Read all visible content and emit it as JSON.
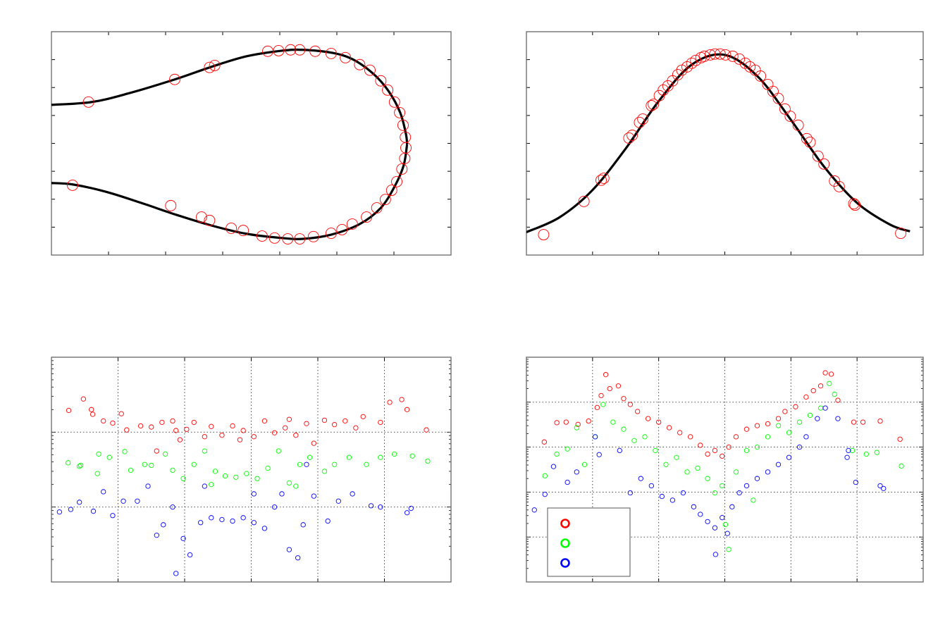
{
  "chart_data": [
    {
      "type": "line",
      "panel": "top-left",
      "xlim": [
        0,
        7
      ],
      "ylim": [
        0,
        8
      ],
      "xticks": [
        0,
        1,
        2,
        3,
        4,
        5,
        6,
        7
      ],
      "yticks": [
        0,
        1,
        2,
        3,
        4,
        5,
        6,
        7,
        8
      ],
      "grid": false,
      "marker_color": "#ff0000",
      "line_color": "#000000",
      "curves": [
        {
          "x": [
            0,
            0.7,
            1.33,
            2.16,
            2.8,
            3.42,
            4.04,
            4.41,
            4.9,
            5.27,
            5.64,
            5.91,
            6.11,
            6.21,
            6.23
          ],
          "y": [
            5.38,
            5.48,
            5.78,
            6.29,
            6.74,
            7.12,
            7.32,
            7.35,
            7.25,
            7.02,
            6.49,
            5.86,
            5.1,
            4.34,
            3.96
          ]
        },
        {
          "x": [
            0,
            0.37,
            0.95,
            1.57,
            2.19,
            2.8,
            3.42,
            4.04,
            4.41,
            4.9,
            5.4,
            5.77,
            6.01,
            6.17,
            6.23
          ],
          "y": [
            2.58,
            2.53,
            2.27,
            1.87,
            1.44,
            1.06,
            0.76,
            0.61,
            0.58,
            0.73,
            1.11,
            1.69,
            2.45,
            3.21,
            3.96
          ]
        }
      ],
      "points": {
        "x": [
          0.65,
          2.16,
          2.77,
          2.86,
          3.79,
          3.98,
          4.19,
          4.35,
          4.62,
          4.9,
          5.15,
          5.4,
          5.58,
          5.77,
          5.89,
          6.01,
          6.1,
          6.16,
          6.2,
          6.21,
          6.19,
          6.14,
          6.05,
          5.96,
          5.85,
          5.7,
          5.52,
          5.27,
          5.09,
          4.9,
          4.59,
          4.35,
          4.14,
          3.91,
          3.69,
          3.36,
          3.15,
          2.77,
          2.63,
          2.09,
          0.37
        ],
        "y": [
          5.48,
          6.29,
          6.72,
          6.79,
          7.3,
          7.32,
          7.35,
          7.35,
          7.3,
          7.22,
          7.07,
          6.82,
          6.62,
          6.24,
          5.91,
          5.48,
          5.1,
          4.65,
          4.22,
          3.84,
          3.46,
          3.08,
          2.63,
          2.32,
          1.99,
          1.69,
          1.36,
          1.11,
          0.91,
          0.78,
          0.66,
          0.58,
          0.58,
          0.61,
          0.68,
          0.88,
          0.96,
          1.24,
          1.36,
          1.77,
          2.5
        ]
      }
    },
    {
      "type": "line",
      "panel": "top-right",
      "xlim": [
        0,
        6
      ],
      "ylim": [
        0,
        8
      ],
      "xticks": [
        0,
        1,
        2,
        3,
        4,
        5,
        6
      ],
      "yticks": [
        0,
        1,
        2,
        3,
        4,
        5,
        6,
        7,
        8
      ],
      "grid": false,
      "marker_color": "#ff0000",
      "line_color": "#000000",
      "curves": [
        {
          "x": [
            0,
            0.5,
            1,
            1.5,
            2,
            2.5,
            3,
            3.5,
            4,
            4.5,
            5,
            5.5,
            5.8
          ],
          "y": [
            0.82,
            1.35,
            2.33,
            3.81,
            5.51,
            6.82,
            7.17,
            6.39,
            4.84,
            3.17,
            1.87,
            1.09,
            0.85
          ]
        }
      ],
      "points": {
        "x": [
          0.26,
          0.87,
          1.13,
          1.17,
          1.55,
          1.6,
          1.71,
          1.76,
          1.89,
          1.92,
          2.01,
          2.07,
          2.14,
          2.21,
          2.29,
          2.35,
          2.43,
          2.5,
          2.56,
          2.64,
          2.69,
          2.78,
          2.85,
          2.93,
          3.01,
          3.12,
          3.22,
          3.31,
          3.38,
          3.46,
          3.54,
          3.65,
          3.73,
          3.81,
          3.91,
          3.99,
          4.11,
          4.24,
          4.29,
          4.41,
          4.5,
          4.66,
          4.73,
          4.95,
          4.97,
          5.66
        ],
        "y": [
          0.73,
          1.92,
          2.68,
          2.75,
          4.19,
          4.29,
          4.75,
          4.87,
          5.35,
          5.4,
          5.71,
          5.91,
          6.06,
          6.24,
          6.46,
          6.62,
          6.74,
          6.87,
          6.97,
          7.07,
          7.12,
          7.17,
          7.2,
          7.2,
          7.17,
          7.12,
          7.02,
          6.87,
          6.74,
          6.62,
          6.41,
          6.11,
          5.86,
          5.61,
          5.23,
          4.97,
          4.65,
          4.17,
          4.04,
          3.54,
          3.26,
          2.65,
          2.45,
          1.84,
          1.79,
          0.78
        ]
      }
    },
    {
      "type": "scatter",
      "panel": "bottom-left",
      "xlim": [
        0,
        6
      ],
      "ylim": [
        1,
        1000
      ],
      "yscale": "log",
      "xticks": [
        0,
        1,
        2,
        3,
        4,
        5,
        6
      ],
      "grid": true,
      "series": [
        {
          "color": "#ff0000",
          "x": [
            0.26,
            0.48,
            0.6,
            0.62,
            0.78,
            0.92,
            1.05,
            1.13,
            1.34,
            1.5,
            1.58,
            1.66,
            1.82,
            1.93,
            2.03,
            2.14,
            2.3,
            2.4,
            2.56,
            2.72,
            2.88,
            3.04,
            3.2,
            3.35,
            3.51,
            3.67,
            3.83,
            3.94,
            4.1,
            4.25,
            4.41,
            4.57,
            4.68,
            4.94,
            5.08,
            5.26,
            5.34,
            5.63,
            1.87,
            2.83,
            3.57
          ],
          "y": [
            195,
            277,
            200,
            173,
            141,
            132,
            176,
            107,
            121,
            117,
            56,
            135,
            141,
            79,
            109,
            135,
            87,
            119,
            91,
            121,
            105,
            87,
            141,
            98,
            114,
            91,
            130,
            71,
            144,
            126,
            141,
            114,
            161,
            135,
            250,
            272,
            200,
            107,
            105,
            79,
            148
          ]
        },
        {
          "color": "#00ff00",
          "x": [
            0.25,
            0.42,
            0.44,
            0.69,
            0.71,
            0.87,
            1.1,
            1.19,
            1.4,
            1.5,
            1.71,
            1.82,
            1.98,
            2.14,
            2.3,
            2.46,
            2.61,
            2.77,
            2.93,
            3.09,
            3.25,
            3.41,
            3.57,
            3.73,
            3.88,
            4.1,
            4.25,
            4.47,
            4.73,
            4.94,
            5.15,
            5.42,
            5.65,
            2.4,
            3.67
          ],
          "y": [
            39,
            35,
            36,
            28,
            51,
            46,
            55,
            31,
            37,
            36,
            51,
            31,
            24,
            37,
            56,
            30,
            26,
            25,
            28,
            24,
            33,
            56,
            21,
            37,
            46,
            30,
            37,
            46,
            37,
            46,
            51,
            48,
            41,
            20,
            19
          ]
        },
        {
          "color": "#0000ff",
          "x": [
            0.12,
            0.29,
            0.42,
            0.63,
            0.78,
            0.92,
            1.08,
            1.29,
            1.45,
            1.58,
            1.68,
            1.82,
            1.87,
            1.98,
            2.08,
            2.24,
            2.4,
            2.56,
            2.72,
            2.88,
            3.04,
            3.2,
            3.35,
            3.46,
            3.57,
            3.7,
            3.78,
            3.94,
            4.15,
            4.31,
            4.52,
            4.8,
            4.94,
            5.34,
            5.4,
            2.3,
            3.04,
            3.83
          ],
          "y": [
            8.6,
            9.3,
            11.6,
            8.8,
            16,
            7.7,
            12,
            12,
            19,
            4.2,
            5.8,
            10,
            1.3,
            3.8,
            2.3,
            6.2,
            7.2,
            6.8,
            6.5,
            7.2,
            6.2,
            5.2,
            10,
            15,
            2.7,
            2.1,
            5.8,
            14,
            6.5,
            12,
            15,
            10.4,
            10,
            8.4,
            9.6,
            19,
            15,
            37
          ]
        }
      ]
    },
    {
      "type": "scatter",
      "panel": "bottom-right",
      "xlim": [
        0,
        6
      ],
      "ylim": [
        1,
        100000
      ],
      "yscale": "log",
      "xticks": [
        0,
        1,
        2,
        3,
        4,
        5,
        6
      ],
      "grid": true,
      "legend": {
        "placement": "bottom-left",
        "entries": [
          {
            "color": "#ff0000"
          },
          {
            "color": "#00ff00"
          },
          {
            "color": "#0000ff"
          }
        ]
      },
      "series": [
        {
          "color": "#ff0000",
          "x": [
            0.27,
            0.46,
            0.6,
            0.78,
            0.94,
            1.07,
            1.13,
            1.2,
            1.26,
            1.39,
            1.47,
            1.57,
            1.68,
            1.84,
            2.0,
            2.16,
            2.32,
            2.48,
            2.63,
            2.74,
            2.85,
            2.96,
            3.06,
            3.17,
            3.33,
            3.49,
            3.65,
            3.81,
            3.91,
            4.07,
            4.23,
            4.34,
            4.45,
            4.52,
            4.61,
            4.71,
            4.95,
            5.09,
            5.35,
            5.65
          ],
          "y": [
            1300,
            3500,
            3600,
            3200,
            3800,
            7600,
            14000,
            41000,
            20000,
            23000,
            12000,
            8900,
            6200,
            4300,
            3600,
            2700,
            2100,
            1700,
            1100,
            700,
            840,
            630,
            1000,
            1700,
            2500,
            3000,
            3300,
            4300,
            6200,
            7900,
            13000,
            18000,
            23000,
            45000,
            42000,
            11000,
            3600,
            3600,
            3800,
            1500
          ]
        },
        {
          "color": "#00ff00",
          "x": [
            0.28,
            0.46,
            0.62,
            0.76,
            0.88,
            1.04,
            1.16,
            1.31,
            1.47,
            1.63,
            1.79,
            1.95,
            2.11,
            2.27,
            2.43,
            2.59,
            2.74,
            2.85,
            2.96,
            3.01,
            3.06,
            3.17,
            3.33,
            3.49,
            3.65,
            3.81,
            3.97,
            4.13,
            4.29,
            4.45,
            4.58,
            4.66,
            4.93,
            5.14,
            5.3,
            5.67,
            3.43
          ],
          "y": [
            230,
            700,
            910,
            2700,
            410,
            1700,
            8900,
            3600,
            2500,
            1400,
            1700,
            840,
            410,
            590,
            280,
            340,
            200,
            96,
            138,
            19,
            5.3,
            280,
            840,
            1000,
            1700,
            3000,
            2100,
            3600,
            5100,
            7400,
            26000,
            15000,
            840,
            700,
            760,
            380,
            66
          ]
        },
        {
          "color": "#0000ff",
          "x": [
            0.12,
            0.28,
            0.41,
            0.62,
            0.76,
            1.04,
            1.1,
            1.41,
            1.57,
            1.73,
            1.89,
            2.05,
            2.21,
            2.37,
            2.53,
            2.63,
            2.74,
            2.85,
            2.96,
            2.86,
            3.04,
            3.11,
            3.22,
            3.33,
            3.49,
            3.65,
            3.81,
            3.97,
            4.13,
            4.23,
            4.4,
            4.52,
            4.85,
            4.87,
            4.98,
            5.35,
            5.4,
            4.71
          ],
          "y": [
            40,
            89,
            370,
            165,
            280,
            1700,
            680,
            840,
            96,
            200,
            138,
            80,
            66,
            96,
            47,
            32,
            22,
            16,
            27,
            4.1,
            12,
            47,
            96,
            138,
            200,
            280,
            410,
            590,
            1000,
            1700,
            4300,
            7400,
            590,
            840,
            165,
            138,
            120,
            4300
          ]
        }
      ]
    }
  ]
}
